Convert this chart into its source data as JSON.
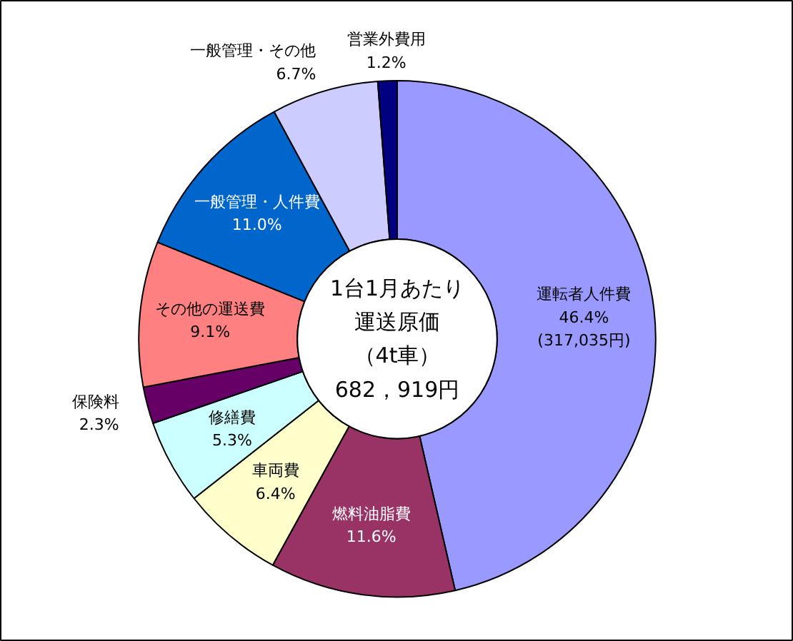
{
  "chart_data": {
    "type": "donut",
    "categories": [
      "運転者人件費",
      "燃料油脂費",
      "車両費",
      "修繕費",
      "保険料",
      "その他の運送費",
      "一般管理・人件費",
      "一般管理・その他",
      "営業外費用"
    ],
    "values": [
      46.4,
      11.6,
      6.4,
      5.3,
      2.3,
      9.1,
      11.0,
      6.7,
      1.2
    ],
    "colors": [
      "#9999ff",
      "#993366",
      "#ffffcc",
      "#ccffff",
      "#660066",
      "#ff8080",
      "#0066cc",
      "#ccccff",
      "#000080"
    ],
    "value_labels": [
      "46.4%\n(317,035円)",
      "11.6%",
      "6.4%",
      "5.3%",
      "2.3%",
      "9.1%",
      "11.0%",
      "6.7%",
      "1.2%"
    ],
    "annotations": [
      "1台1月あたり",
      "運送原価",
      "（4t車）",
      "682，919円"
    ]
  }
}
